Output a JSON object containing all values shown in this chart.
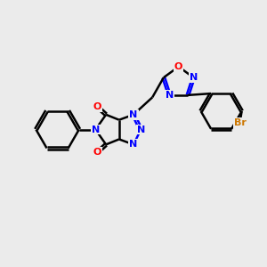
{
  "background_color": "#ebebeb",
  "bond_color": "#000000",
  "nitrogen_color": "#0000ff",
  "oxygen_color": "#ff0000",
  "bromine_color": "#cc7700",
  "line_width": 1.8,
  "fig_width": 3.0,
  "fig_height": 3.0,
  "dpi": 100,
  "xlim": [
    0,
    10
  ],
  "ylim": [
    0,
    10
  ]
}
